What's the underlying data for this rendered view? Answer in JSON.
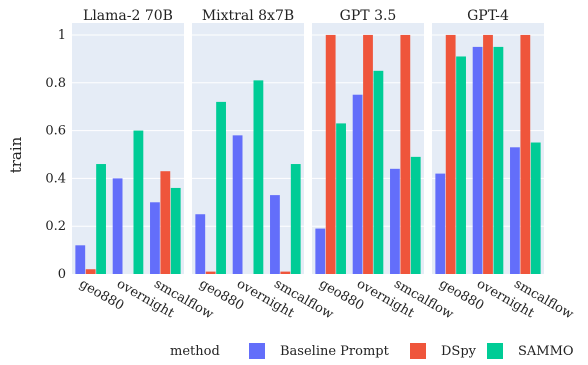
{
  "chart_data": {
    "type": "bar",
    "ylabel": "train",
    "ylim": [
      0,
      1.05
    ],
    "yticks": [
      0,
      0.2,
      0.4,
      0.6,
      0.8,
      1
    ],
    "ytick_labels": [
      "0",
      "0.2",
      "0.4",
      "0.6",
      "0.8",
      "1"
    ],
    "categories": [
      "geo880",
      "overnight",
      "smcalflow"
    ],
    "grid": true,
    "legend": {
      "title": "method",
      "placement": "bottom",
      "entries": [
        {
          "name": "Baseline Prompt",
          "color": "#636efa"
        },
        {
          "name": "DSpy",
          "color": "#ef553b"
        },
        {
          "name": "SAMMO",
          "color": "#00cc96"
        }
      ]
    },
    "panels": [
      {
        "title": "Llama-2 70B",
        "series": [
          {
            "name": "Baseline Prompt",
            "values": [
              0.12,
              0.4,
              0.3
            ]
          },
          {
            "name": "DSpy",
            "values": [
              0.02,
              0.0,
              0.43
            ]
          },
          {
            "name": "SAMMO",
            "values": [
              0.46,
              0.6,
              0.36
            ]
          }
        ]
      },
      {
        "title": "Mixtral 8x7B",
        "series": [
          {
            "name": "Baseline Prompt",
            "values": [
              0.25,
              0.58,
              0.33
            ]
          },
          {
            "name": "DSpy",
            "values": [
              0.01,
              0.0,
              0.01
            ]
          },
          {
            "name": "SAMMO",
            "values": [
              0.72,
              0.81,
              0.46
            ]
          }
        ]
      },
      {
        "title": "GPT 3.5",
        "series": [
          {
            "name": "Baseline Prompt",
            "values": [
              0.19,
              0.75,
              0.44
            ]
          },
          {
            "name": "DSpy",
            "values": [
              1.0,
              1.0,
              1.0
            ]
          },
          {
            "name": "SAMMO",
            "values": [
              0.63,
              0.85,
              0.49
            ]
          }
        ]
      },
      {
        "title": "GPT-4",
        "series": [
          {
            "name": "Baseline Prompt",
            "values": [
              0.42,
              0.95,
              0.53
            ]
          },
          {
            "name": "DSpy",
            "values": [
              1.0,
              1.0,
              1.0
            ]
          },
          {
            "name": "SAMMO",
            "values": [
              0.91,
              0.95,
              0.55
            ]
          }
        ]
      }
    ]
  }
}
